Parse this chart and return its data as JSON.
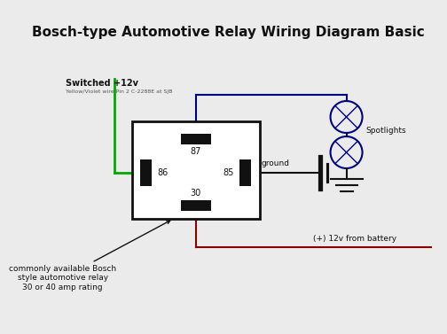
{
  "title": "Bosch-type Automotive Relay Wiring Diagram Basic",
  "title_fontsize": 11,
  "bg_color": "#ebebeb",
  "line_color_green": "#00aa00",
  "line_color_blue": "#000080",
  "line_color_red": "#880000",
  "line_color_black": "#111111",
  "switched_label": "Switched +12v",
  "switched_sub": "Yellow/Violet wire Pin 2 C-2288E at SJB",
  "spotlights_label": "Spotlights",
  "ground_label": "ground",
  "battery_label": "(+) 12v from battery",
  "annotation_relay": "commonly available Bosch\nstyle automotive relay\n30 or 40 amp rating"
}
